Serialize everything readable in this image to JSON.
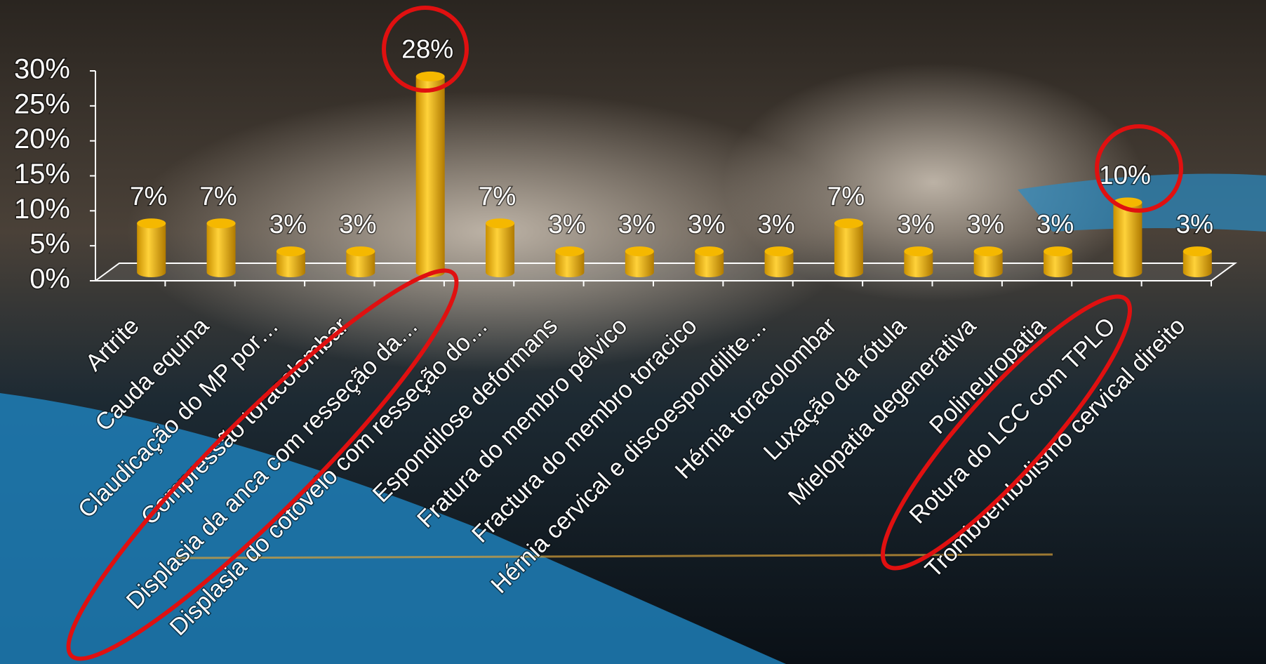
{
  "chart_data": {
    "type": "bar",
    "categories": [
      "Artrite",
      "Cauda equina",
      "Claudicação do MP por…",
      "Compressão toracolombar",
      "Displasia da anca com resseção da…",
      "Displasia do cotovelo com resseção do…",
      "Espondilose deformans",
      "Fratura do membro pélvico",
      "Fractura do membro toracico",
      "Hérnia cervical e discoespondilite…",
      "Hérnia toracolombar",
      "Luxação da rótula",
      "Mielopatia degenerativa",
      "Polineuropatia",
      "Rotura do LCC com TPLO",
      "Tromboembolismo cervical direito"
    ],
    "values": [
      7,
      7,
      3,
      3,
      28,
      7,
      3,
      3,
      3,
      3,
      7,
      3,
      3,
      3,
      10,
      3
    ],
    "value_labels": [
      "7%",
      "7%",
      "3%",
      "3%",
      "28%",
      "7%",
      "3%",
      "3%",
      "3%",
      "3%",
      "7%",
      "3%",
      "3%",
      "3%",
      "10%",
      "3%"
    ],
    "color": "#f5b800",
    "ylim": [
      0,
      30
    ],
    "yticks": [
      {
        "value": 0,
        "label": "0%"
      },
      {
        "value": 5,
        "label": "5%"
      },
      {
        "value": 10,
        "label": "10%"
      },
      {
        "value": 15,
        "label": "15%"
      },
      {
        "value": 20,
        "label": "20%"
      },
      {
        "value": 25,
        "label": "25%"
      },
      {
        "value": 30,
        "label": "30%"
      }
    ]
  }
}
